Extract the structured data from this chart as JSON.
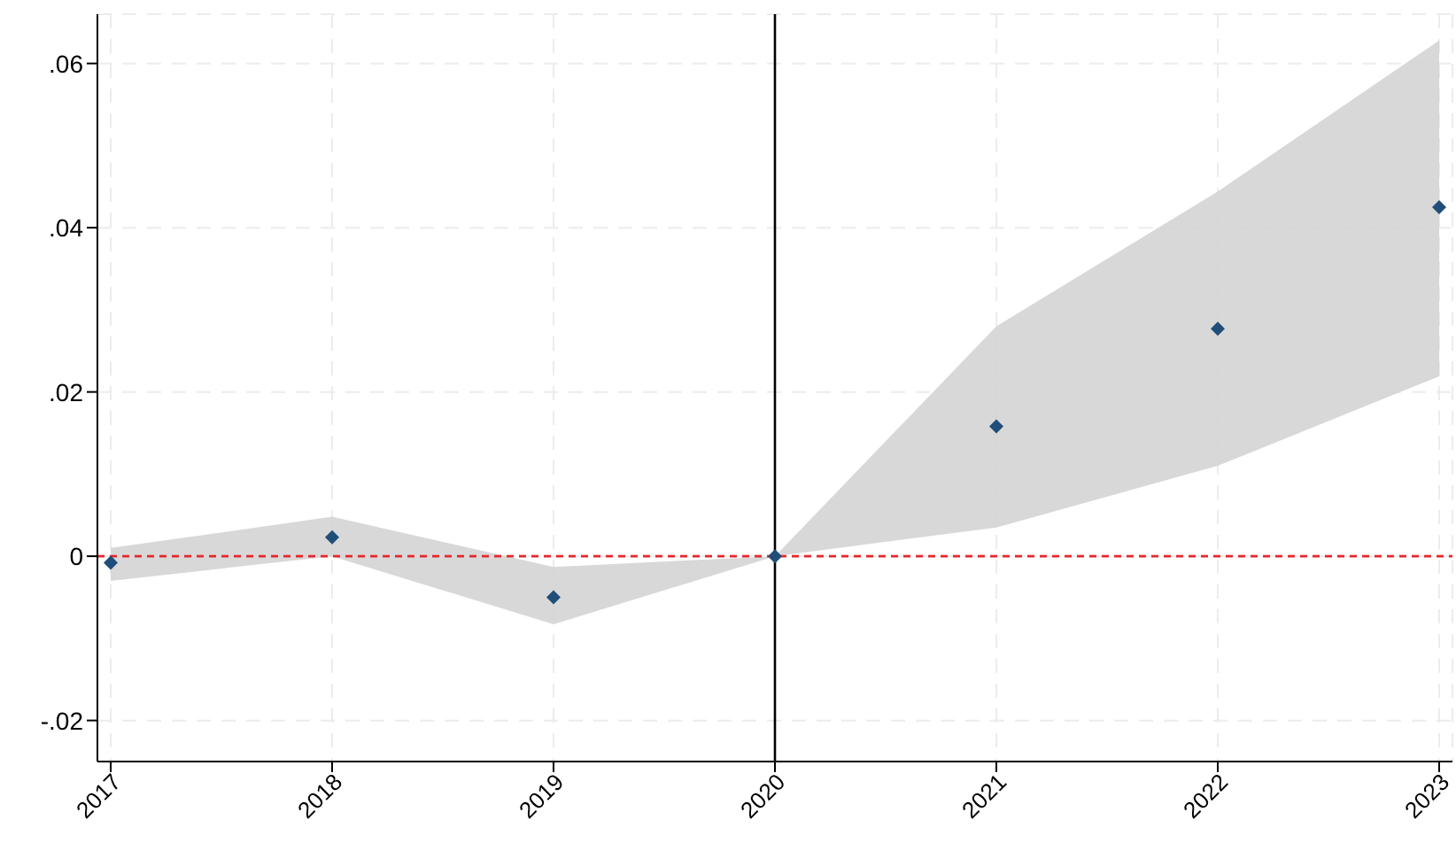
{
  "chart_data": {
    "type": "scatter",
    "x": [
      2017,
      2018,
      2019,
      2020,
      2021,
      2022,
      2023
    ],
    "series": [
      {
        "color": "#1f4e79",
        "values": [
          -0.0008,
          0.0023,
          -0.005,
          0,
          0.0158,
          0.0277,
          0.0425
        ],
        "lower": [
          -0.003,
          0,
          -0.0083,
          0,
          0.0035,
          0.011,
          0.0219
        ],
        "upper": [
          0.001,
          0.0048,
          -0.0013,
          0,
          0.028,
          0.0444,
          0.0628
        ]
      }
    ],
    "xlim": [
      2016.94,
      2023.06
    ],
    "xticks": [
      2017,
      2018,
      2019,
      2020,
      2021,
      2022,
      2023
    ],
    "ylim": [
      -0.025,
      0.066
    ],
    "yticks": [
      {
        "value": -0.02,
        "label": "-.02"
      },
      {
        "value": 0,
        "label": "0"
      },
      {
        "value": 0.02,
        "label": ".02"
      },
      {
        "value": 0.04,
        "label": ".04"
      },
      {
        "value": 0.06,
        "label": ".06"
      }
    ],
    "ref_lines": [
      {
        "axis": "y",
        "value": 0,
        "color": "#e8262b",
        "line_style": "dashed"
      },
      {
        "axis": "x",
        "value": 2020,
        "color": "#000000",
        "line_style": "solid"
      }
    ],
    "grid": true,
    "marker": "diamond",
    "legend": false
  }
}
